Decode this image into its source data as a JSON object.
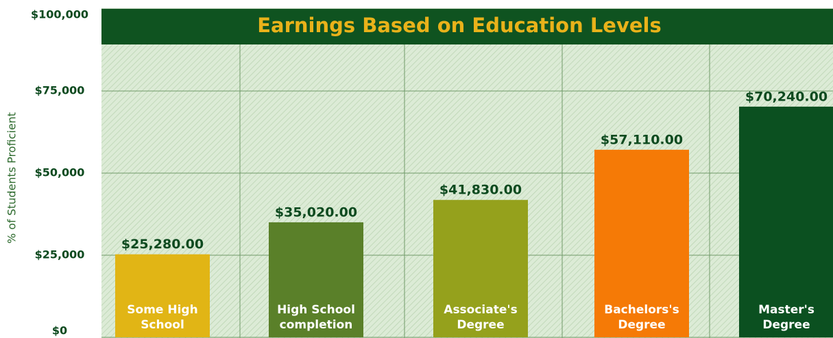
{
  "chart_data": {
    "type": "bar",
    "title": "Earnings Based on Education Levels",
    "y_label": "% of Students Proficient",
    "categories": [
      "Some High School",
      "High School completion",
      "Associate's Degree",
      "Bachelors's Degree",
      "Master's Degree"
    ],
    "values": [
      25280,
      35020,
      41830,
      57110,
      70240
    ],
    "value_labels": [
      "$25,280.00",
      "$35,020.00",
      "$41,830.00",
      "$57,110.00",
      "$70,240.00"
    ],
    "colors": [
      "#e1b515",
      "#5a8029",
      "#95a11c",
      "#f57a06",
      "#0b5020"
    ],
    "ylim": [
      0,
      100000
    ],
    "yticks": [
      {
        "value": 0,
        "label": "$0"
      },
      {
        "value": 25000,
        "label": "$25,000"
      },
      {
        "value": 50000,
        "label": "$50,000"
      },
      {
        "value": 75000,
        "label": "$75,000"
      },
      {
        "value": 100000,
        "label": "$100,000"
      }
    ],
    "grid": true
  }
}
